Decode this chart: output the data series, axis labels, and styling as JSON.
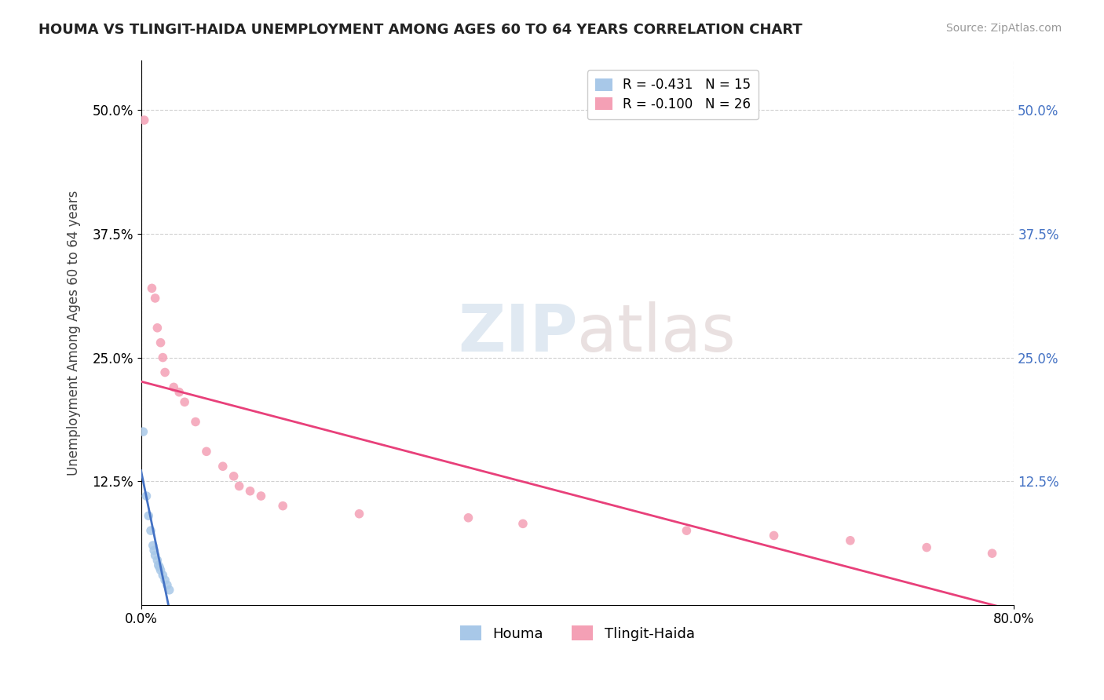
{
  "title": "HOUMA VS TLINGIT-HAIDA UNEMPLOYMENT AMONG AGES 60 TO 64 YEARS CORRELATION CHART",
  "source": "Source: ZipAtlas.com",
  "ylabel": "Unemployment Among Ages 60 to 64 years",
  "xlim": [
    0.0,
    0.8
  ],
  "ylim": [
    0.0,
    0.55
  ],
  "xtick_labels": [
    "0.0%",
    "80.0%"
  ],
  "xtick_positions": [
    0.0,
    0.8
  ],
  "ytick_positions": [
    0.125,
    0.25,
    0.375,
    0.5
  ],
  "ytick_labels": [
    "12.5%",
    "25.0%",
    "37.5%",
    "50.0%"
  ],
  "houma_color": "#a8c8e8",
  "tlingit_color": "#f4a0b5",
  "houma_line_color": "#4472c4",
  "tlingit_line_color": "#e8407a",
  "right_tick_color": "#4472c4",
  "legend_houma_r": "R = -0.431",
  "legend_houma_n": "N = 15",
  "legend_tlingit_r": "R = -0.100",
  "legend_tlingit_n": "N = 26",
  "watermark_zip": "ZIP",
  "watermark_atlas": "atlas",
  "houma_x": [
    0.002,
    0.005,
    0.007,
    0.009,
    0.011,
    0.012,
    0.013,
    0.015,
    0.016,
    0.017,
    0.018,
    0.02,
    0.022,
    0.024,
    0.026
  ],
  "houma_y": [
    0.175,
    0.11,
    0.09,
    0.075,
    0.06,
    0.055,
    0.05,
    0.045,
    0.04,
    0.038,
    0.035,
    0.03,
    0.025,
    0.02,
    0.015
  ],
  "tlingit_x": [
    0.003,
    0.01,
    0.013,
    0.015,
    0.018,
    0.02,
    0.022,
    0.03,
    0.035,
    0.04,
    0.05,
    0.06,
    0.075,
    0.085,
    0.09,
    0.1,
    0.11,
    0.13,
    0.2,
    0.3,
    0.35,
    0.5,
    0.58,
    0.65,
    0.72,
    0.78
  ],
  "tlingit_y": [
    0.49,
    0.32,
    0.31,
    0.28,
    0.265,
    0.25,
    0.235,
    0.22,
    0.215,
    0.205,
    0.185,
    0.155,
    0.14,
    0.13,
    0.12,
    0.115,
    0.11,
    0.1,
    0.092,
    0.088,
    0.082,
    0.075,
    0.07,
    0.065,
    0.058,
    0.052
  ]
}
